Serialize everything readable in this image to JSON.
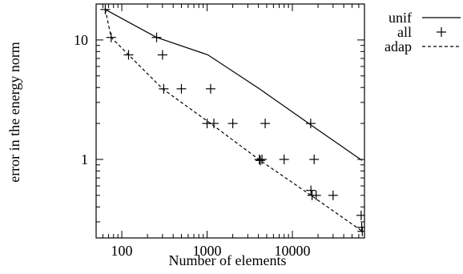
{
  "chart_data": {
    "type": "line",
    "title": "",
    "xlabel": "Number of elements",
    "ylabel": "error in the energy norm",
    "x_scale": "log",
    "y_scale": "log",
    "xlim": [
      50,
      70000
    ],
    "ylim": [
      0.22,
      20
    ],
    "x_ticks": [
      100,
      1000,
      10000
    ],
    "x_tick_labels": [
      "100",
      "1000",
      "10000"
    ],
    "y_ticks": [
      1,
      10
    ],
    "y_tick_labels": [
      "1",
      "10"
    ],
    "grid": false,
    "legend_position": "outside-top-right",
    "series": [
      {
        "name": "unif",
        "style": "solid-line",
        "x": [
          64,
          256,
          1024,
          4096,
          16384,
          65536
        ],
        "y": [
          18,
          10.5,
          7.5,
          3.9,
          1.95,
          0.98
        ]
      },
      {
        "name": "all",
        "style": "plus-markers",
        "x": [
          64,
          75,
          120,
          256,
          300,
          310,
          500,
          1000,
          1100,
          1200,
          2000,
          4096,
          4200,
          4400,
          4800,
          8000,
          16384,
          16500,
          17000,
          18000,
          19000,
          30000,
          64000,
          65000,
          66000
        ],
        "y": [
          18,
          10.5,
          7.5,
          10.5,
          7.5,
          3.9,
          3.9,
          2.0,
          3.9,
          2.0,
          2.0,
          1.0,
          0.98,
          1.0,
          2.0,
          1.0,
          2.0,
          0.55,
          0.5,
          1.0,
          0.5,
          0.5,
          0.34,
          0.27,
          0.25
        ]
      },
      {
        "name": "adap",
        "style": "dashed-line",
        "x": [
          64,
          75,
          120,
          300,
          1100,
          4200,
          16500,
          66000
        ],
        "y": [
          18,
          10.5,
          7.5,
          3.9,
          2.0,
          0.98,
          0.5,
          0.25
        ]
      }
    ]
  }
}
